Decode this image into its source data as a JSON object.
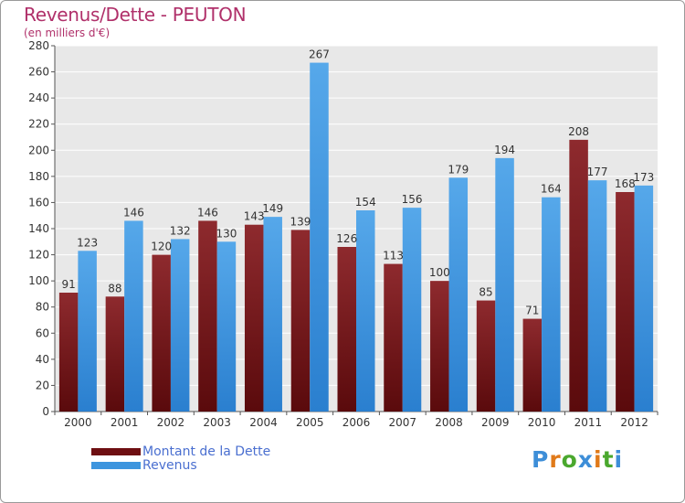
{
  "title": "Revenus/Dette - PEUTON",
  "subtitle": "(en milliers d'€)",
  "brand": "Proxiti",
  "colors": {
    "dette": "#7a1418",
    "revenus": "#3d95de",
    "title": "#b0306a",
    "legend_text": "#4a6fd0",
    "brand_letters": [
      "#3d8ed8",
      "#e07a1a",
      "#4aa82e",
      "#3d8ed8",
      "#e07a1a",
      "#4aa82e",
      "#3d8ed8"
    ]
  },
  "chart_data": {
    "type": "bar",
    "title": "Revenus/Dette - PEUTON",
    "ylabel": "(en milliers d'€)",
    "xlabel": "",
    "categories": [
      "2000",
      "2001",
      "2002",
      "2003",
      "2004",
      "2005",
      "2006",
      "2007",
      "2008",
      "2009",
      "2010",
      "2011",
      "2012"
    ],
    "series": [
      {
        "name": "Montant de la Dette",
        "values": [
          91,
          88,
          120,
          146,
          143,
          139,
          126,
          113,
          100,
          85,
          71,
          208,
          168
        ]
      },
      {
        "name": "Revenus",
        "values": [
          123,
          146,
          132,
          130,
          149,
          267,
          154,
          156,
          179,
          194,
          164,
          177,
          173
        ]
      }
    ],
    "ylim": [
      0,
      280
    ],
    "yticks": [
      0,
      20,
      40,
      60,
      80,
      100,
      120,
      140,
      160,
      180,
      200,
      220,
      240,
      260,
      280
    ],
    "grid": true,
    "legend": "bottom-left"
  }
}
